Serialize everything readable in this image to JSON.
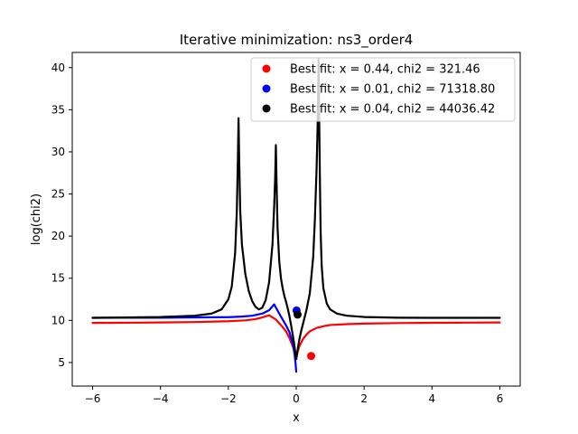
{
  "chart_data": {
    "type": "line",
    "title": "Iterative minimization: ns3_order4",
    "xlabel": "x",
    "ylabel": "log(chi2)",
    "xlim": [
      -6.6,
      6.6
    ],
    "ylim": [
      2.2,
      41.8
    ],
    "xticks": [
      -6,
      -4,
      -2,
      0,
      2,
      4,
      6
    ],
    "xtick_labels": [
      "−6",
      "−4",
      "−2",
      "0",
      "2",
      "4",
      "6"
    ],
    "yticks": [
      5,
      10,
      15,
      20,
      25,
      30,
      35,
      40
    ],
    "ytick_labels": [
      "5",
      "10",
      "15",
      "20",
      "25",
      "30",
      "35",
      "40"
    ],
    "grid": false,
    "legend_position": "top-right",
    "series": [
      {
        "name": "red",
        "color": "#ff0000",
        "x": [
          -6,
          -5,
          -4,
          -3,
          -2,
          -1.5,
          -1.2,
          -1.0,
          -0.8,
          -0.6,
          -0.4,
          -0.3,
          -0.2,
          -0.1,
          -0.05,
          0.0,
          0.05,
          0.1,
          0.2,
          0.3,
          0.4,
          0.6,
          0.8,
          1.0,
          1.5,
          2,
          3,
          4,
          5,
          6
        ],
        "y": [
          9.7,
          9.72,
          9.75,
          9.8,
          9.9,
          10.0,
          10.15,
          10.35,
          10.6,
          10.1,
          9.2,
          8.7,
          7.9,
          6.9,
          6.3,
          5.5,
          6.4,
          7.0,
          7.8,
          8.3,
          8.7,
          9.1,
          9.3,
          9.45,
          9.55,
          9.62,
          9.68,
          9.71,
          9.73,
          9.75
        ]
      },
      {
        "name": "blue",
        "color": "#0000ff",
        "x": [
          -6,
          -4,
          -2,
          -1.6,
          -1.3,
          -1.0,
          -0.8,
          -0.65,
          -0.5,
          -0.4,
          -0.3,
          -0.2,
          -0.1,
          -0.05,
          -0.02,
          0.0
        ],
        "y": [
          10.3,
          10.32,
          10.38,
          10.45,
          10.55,
          10.8,
          11.2,
          11.9,
          10.8,
          10.1,
          9.4,
          8.6,
          7.2,
          6.0,
          4.9,
          3.9
        ]
      },
      {
        "name": "black",
        "color": "#000000",
        "x": [
          -6,
          -5,
          -4,
          -3,
          -2.5,
          -2.2,
          -2.0,
          -1.9,
          -1.8,
          -1.75,
          -1.72,
          -1.7,
          -1.68,
          -1.65,
          -1.6,
          -1.5,
          -1.4,
          -1.3,
          -1.2,
          -1.1,
          -1.0,
          -0.9,
          -0.8,
          -0.7,
          -0.65,
          -0.62,
          -0.6,
          -0.58,
          -0.55,
          -0.5,
          -0.45,
          -0.4,
          -0.35,
          -0.3,
          -0.25,
          -0.2,
          -0.15,
          -0.1,
          -0.06,
          -0.03,
          0.0,
          0.03,
          0.06,
          0.1,
          0.15,
          0.2,
          0.3,
          0.4,
          0.5,
          0.55,
          0.6,
          0.63,
          0.66,
          0.68,
          0.7,
          0.72,
          0.75,
          0.8,
          0.9,
          1.0,
          1.2,
          1.5,
          2.0,
          3.0,
          4.0,
          5.0,
          6.0
        ],
        "y": [
          10.3,
          10.35,
          10.4,
          10.55,
          10.8,
          11.3,
          12.5,
          14.0,
          18.0,
          23.0,
          29.0,
          34.0,
          29.0,
          23.0,
          19.0,
          15.5,
          13.5,
          12.3,
          11.6,
          11.3,
          11.5,
          12.4,
          14.5,
          19.0,
          23.5,
          27.0,
          30.8,
          26.5,
          21.0,
          17.0,
          15.0,
          13.8,
          12.9,
          12.2,
          11.4,
          10.5,
          9.4,
          8.2,
          7.2,
          6.3,
          5.4,
          6.2,
          7.0,
          7.9,
          8.8,
          9.6,
          11.2,
          13.2,
          17.5,
          22.0,
          28.0,
          33.0,
          41.0,
          33.0,
          26.0,
          20.5,
          16.5,
          13.8,
          12.0,
          11.3,
          10.8,
          10.55,
          10.4,
          10.32,
          10.3,
          10.3,
          10.3
        ]
      }
    ],
    "best_fit_points": [
      {
        "x": 0.44,
        "y": 5.77,
        "color": "#ff0000",
        "label": "Best fit: x = 0.44, chi2 = 321.46"
      },
      {
        "x": 0.01,
        "y": 11.17,
        "color": "#0000ff",
        "label": "Best fit: x = 0.01, chi2 = 71318.80"
      },
      {
        "x": 0.04,
        "y": 10.69,
        "color": "#000000",
        "label": "Best fit: x = 0.04, chi2 = 44036.42"
      }
    ]
  }
}
